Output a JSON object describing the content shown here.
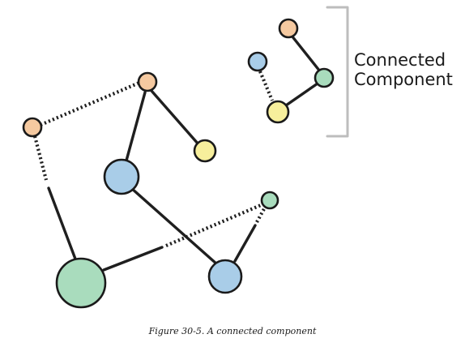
{
  "label": {
    "line1": "Connected",
    "line2": "Component"
  },
  "caption": "Figure 30-5. A connected component",
  "colors": {
    "orange": "#f5c9a0",
    "blue": "#a9cde8",
    "green": "#a9dcbd",
    "yellow": "#f7ef9c",
    "edge": "#1f1f1f",
    "bracket": "#bdbdbd"
  },
  "nodes": [
    {
      "id": "orange-left",
      "color": "orange"
    },
    {
      "id": "orange-top",
      "color": "orange"
    },
    {
      "id": "yellow-mid",
      "color": "yellow"
    },
    {
      "id": "blue-mid",
      "color": "blue"
    },
    {
      "id": "green-small",
      "color": "green"
    },
    {
      "id": "green-large",
      "color": "green"
    },
    {
      "id": "blue-bottom",
      "color": "blue"
    },
    {
      "id": "orange-cc",
      "color": "orange"
    },
    {
      "id": "blue-cc",
      "color": "blue"
    },
    {
      "id": "green-cc",
      "color": "green"
    },
    {
      "id": "yellow-cc",
      "color": "yellow"
    }
  ],
  "edges": [
    {
      "from": "orange-left",
      "to": "orange-top",
      "style": "dashed"
    },
    {
      "from": "orange-left",
      "to": "green-large",
      "style": "dashed-solid"
    },
    {
      "from": "orange-top",
      "to": "yellow-mid",
      "style": "solid"
    },
    {
      "from": "orange-top",
      "to": "blue-mid",
      "style": "solid"
    },
    {
      "from": "blue-mid",
      "to": "blue-bottom",
      "style": "solid"
    },
    {
      "from": "green-large",
      "to": "green-small",
      "style": "solid-dashed"
    },
    {
      "from": "blue-bottom",
      "to": "green-small",
      "style": "solid-dashed"
    },
    {
      "from": "orange-cc",
      "to": "green-cc",
      "style": "solid"
    },
    {
      "from": "green-cc",
      "to": "yellow-cc",
      "style": "solid"
    },
    {
      "from": "blue-cc",
      "to": "yellow-cc",
      "style": "dashed"
    }
  ]
}
